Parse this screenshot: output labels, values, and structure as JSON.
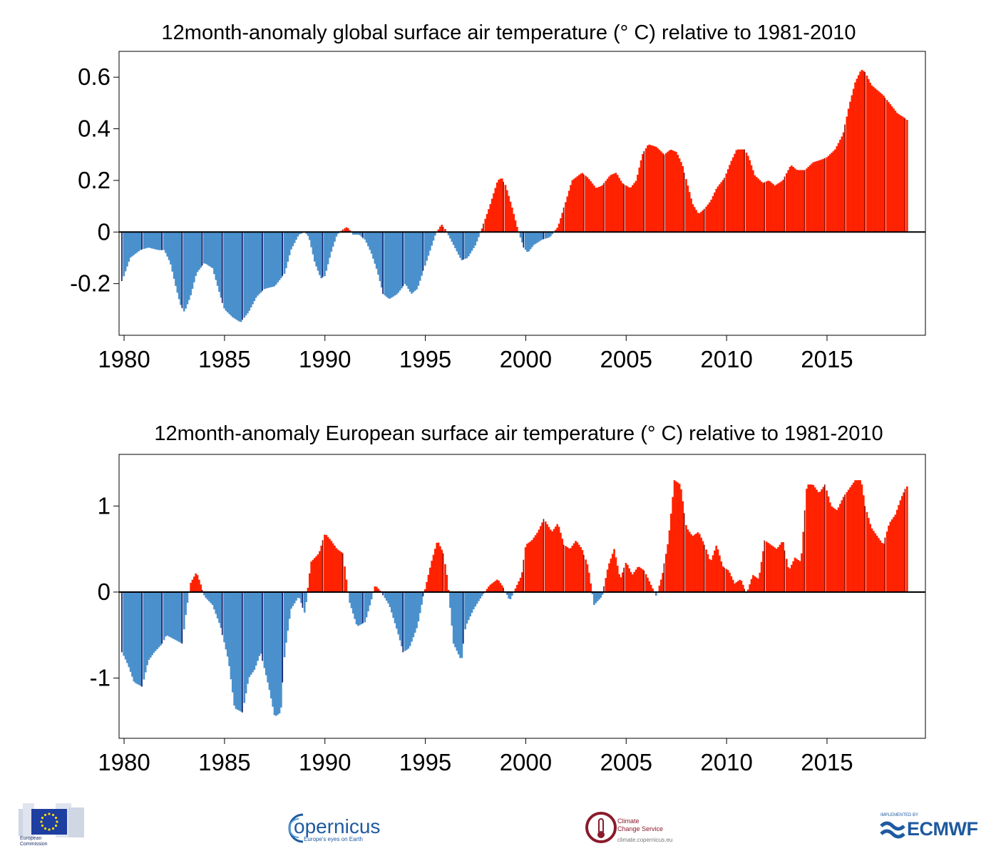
{
  "colors": {
    "positive": "#ff2200",
    "positive_dec": "#8b1208",
    "negative": "#4a90cc",
    "negative_dec": "#0f1f6b",
    "axis": "#000000",
    "eu_blue": "#1e3ea0",
    "copernicus_blue": "#1f5aa0",
    "c3s_red": "#8a1a2b",
    "ecmwf_blue": "#1e5aa0"
  },
  "chart_data": [
    {
      "type": "bar",
      "title": "12month-anomaly global surface air temperature (° C) relative to 1981-2010",
      "xlabel": "",
      "ylabel": "",
      "xlim": [
        1979.75,
        2019.9
      ],
      "ylim": [
        -0.4,
        0.7
      ],
      "xticks": [
        1980,
        1985,
        1990,
        1995,
        2000,
        2005,
        2010,
        2015
      ],
      "yticks": [
        -0.2,
        0,
        0.2,
        0.4,
        0.6
      ],
      "ytick_labels": [
        "-0.2",
        "0",
        "0.2",
        "0.4",
        "0.6"
      ],
      "grid": false,
      "frequency": "monthly 12-month running mean, Dec 1979 - Jan 2019",
      "keypoints": [
        [
          1979.9,
          -0.19
        ],
        [
          1980.3,
          -0.1
        ],
        [
          1980.8,
          -0.07
        ],
        [
          1981.2,
          -0.06
        ],
        [
          1981.7,
          -0.07
        ],
        [
          1982.0,
          -0.07
        ],
        [
          1982.3,
          -0.12
        ],
        [
          1982.6,
          -0.22
        ],
        [
          1982.8,
          -0.28
        ],
        [
          1983.0,
          -0.31
        ],
        [
          1983.3,
          -0.25
        ],
        [
          1983.6,
          -0.16
        ],
        [
          1984.0,
          -0.12
        ],
        [
          1984.4,
          -0.14
        ],
        [
          1984.8,
          -0.25
        ],
        [
          1985.0,
          -0.3
        ],
        [
          1985.4,
          -0.33
        ],
        [
          1985.8,
          -0.35
        ],
        [
          1986.2,
          -0.31
        ],
        [
          1986.6,
          -0.25
        ],
        [
          1987.0,
          -0.22
        ],
        [
          1987.5,
          -0.21
        ],
        [
          1988.0,
          -0.16
        ],
        [
          1988.3,
          -0.07
        ],
        [
          1988.7,
          -0.01
        ],
        [
          1989.0,
          0.0
        ],
        [
          1989.2,
          -0.02
        ],
        [
          1989.5,
          -0.12
        ],
        [
          1989.8,
          -0.18
        ],
        [
          1990.0,
          -0.17
        ],
        [
          1990.3,
          -0.08
        ],
        [
          1990.6,
          -0.01
        ],
        [
          1990.9,
          0.01
        ],
        [
          1991.1,
          0.02
        ],
        [
          1991.4,
          -0.01
        ],
        [
          1991.7,
          -0.01
        ],
        [
          1992.0,
          -0.03
        ],
        [
          1992.3,
          -0.08
        ],
        [
          1992.6,
          -0.15
        ],
        [
          1992.9,
          -0.24
        ],
        [
          1993.2,
          -0.26
        ],
        [
          1993.6,
          -0.24
        ],
        [
          1994.0,
          -0.2
        ],
        [
          1994.3,
          -0.24
        ],
        [
          1994.6,
          -0.22
        ],
        [
          1994.9,
          -0.15
        ],
        [
          1995.2,
          -0.08
        ],
        [
          1995.5,
          -0.01
        ],
        [
          1995.8,
          0.03
        ],
        [
          1996.0,
          0.01
        ],
        [
          1996.4,
          -0.05
        ],
        [
          1996.8,
          -0.11
        ],
        [
          1997.1,
          -0.1
        ],
        [
          1997.5,
          -0.05
        ],
        [
          1997.8,
          0.01
        ],
        [
          1998.2,
          0.1
        ],
        [
          1998.6,
          0.2
        ],
        [
          1998.8,
          0.21
        ],
        [
          1999.0,
          0.18
        ],
        [
          1999.3,
          0.1
        ],
        [
          1999.6,
          0.01
        ],
        [
          1999.9,
          -0.06
        ],
        [
          2000.1,
          -0.08
        ],
        [
          2000.4,
          -0.05
        ],
        [
          2000.8,
          -0.03
        ],
        [
          2001.2,
          -0.02
        ],
        [
          2001.6,
          0.02
        ],
        [
          2002.0,
          0.12
        ],
        [
          2002.3,
          0.2
        ],
        [
          2002.8,
          0.23
        ],
        [
          2003.1,
          0.21
        ],
        [
          2003.5,
          0.17
        ],
        [
          2003.8,
          0.18
        ],
        [
          2004.2,
          0.22
        ],
        [
          2004.5,
          0.23
        ],
        [
          2004.8,
          0.19
        ],
        [
          2005.2,
          0.17
        ],
        [
          2005.5,
          0.2
        ],
        [
          2005.8,
          0.3
        ],
        [
          2006.1,
          0.34
        ],
        [
          2006.5,
          0.33
        ],
        [
          2006.9,
          0.3
        ],
        [
          2007.2,
          0.32
        ],
        [
          2007.5,
          0.31
        ],
        [
          2007.8,
          0.26
        ],
        [
          2008.0,
          0.2
        ],
        [
          2008.3,
          0.11
        ],
        [
          2008.6,
          0.07
        ],
        [
          2008.9,
          0.09
        ],
        [
          2009.2,
          0.12
        ],
        [
          2009.5,
          0.17
        ],
        [
          2009.9,
          0.21
        ],
        [
          2010.2,
          0.27
        ],
        [
          2010.5,
          0.32
        ],
        [
          2010.9,
          0.32
        ],
        [
          2011.1,
          0.29
        ],
        [
          2011.4,
          0.22
        ],
        [
          2011.8,
          0.19
        ],
        [
          2012.1,
          0.2
        ],
        [
          2012.4,
          0.18
        ],
        [
          2012.8,
          0.2
        ],
        [
          2013.2,
          0.26
        ],
        [
          2013.5,
          0.24
        ],
        [
          2013.9,
          0.24
        ],
        [
          2014.3,
          0.27
        ],
        [
          2014.7,
          0.28
        ],
        [
          2015.0,
          0.29
        ],
        [
          2015.4,
          0.32
        ],
        [
          2015.8,
          0.38
        ],
        [
          2016.1,
          0.49
        ],
        [
          2016.4,
          0.58
        ],
        [
          2016.7,
          0.63
        ],
        [
          2016.9,
          0.62
        ],
        [
          2017.2,
          0.57
        ],
        [
          2017.5,
          0.55
        ],
        [
          2017.8,
          0.53
        ],
        [
          2018.1,
          0.5
        ],
        [
          2018.5,
          0.46
        ],
        [
          2018.9,
          0.44
        ],
        [
          2019.05,
          0.43
        ]
      ]
    },
    {
      "type": "bar",
      "title": "12month-anomaly European surface air temperature (° C) relative to 1981-2010",
      "xlabel": "",
      "ylabel": "",
      "xlim": [
        1979.75,
        2019.9
      ],
      "ylim": [
        -1.7,
        1.6
      ],
      "xticks": [
        1980,
        1985,
        1990,
        1995,
        2000,
        2005,
        2010,
        2015
      ],
      "yticks": [
        -1,
        0,
        1
      ],
      "ytick_labels": [
        "-1",
        "0",
        "1"
      ],
      "grid": false,
      "frequency": "monthly 12-month running mean, Dec 1979 - Jan 2019",
      "keypoints": [
        [
          1979.9,
          -0.7
        ],
        [
          1980.2,
          -0.85
        ],
        [
          1980.5,
          -1.05
        ],
        [
          1980.9,
          -1.1
        ],
        [
          1981.2,
          -0.8
        ],
        [
          1981.5,
          -0.7
        ],
        [
          1981.9,
          -0.6
        ],
        [
          1982.1,
          -0.5
        ],
        [
          1982.5,
          -0.55
        ],
        [
          1982.9,
          -0.6
        ],
        [
          1983.1,
          -0.2
        ],
        [
          1983.3,
          0.1
        ],
        [
          1983.6,
          0.23
        ],
        [
          1983.8,
          0.1
        ],
        [
          1984.0,
          -0.05
        ],
        [
          1984.4,
          -0.15
        ],
        [
          1984.8,
          -0.4
        ],
        [
          1985.2,
          -0.8
        ],
        [
          1985.5,
          -1.35
        ],
        [
          1985.9,
          -1.4
        ],
        [
          1986.2,
          -1.0
        ],
        [
          1986.5,
          -0.9
        ],
        [
          1986.8,
          -0.7
        ],
        [
          1987.2,
          -1.1
        ],
        [
          1987.5,
          -1.45
        ],
        [
          1987.8,
          -1.4
        ],
        [
          1988.0,
          -0.7
        ],
        [
          1988.3,
          -0.2
        ],
        [
          1988.7,
          -0.05
        ],
        [
          1989.0,
          -0.25
        ],
        [
          1989.3,
          0.35
        ],
        [
          1989.7,
          0.45
        ],
        [
          1990.0,
          0.68
        ],
        [
          1990.3,
          0.6
        ],
        [
          1990.6,
          0.5
        ],
        [
          1990.9,
          0.45
        ],
        [
          1991.2,
          -0.1
        ],
        [
          1991.6,
          -0.4
        ],
        [
          1992.0,
          -0.35
        ],
        [
          1992.3,
          -0.1
        ],
        [
          1992.5,
          0.08
        ],
        [
          1992.8,
          0.0
        ],
        [
          1993.2,
          -0.15
        ],
        [
          1993.6,
          -0.45
        ],
        [
          1993.9,
          -0.7
        ],
        [
          1994.2,
          -0.65
        ],
        [
          1994.6,
          -0.4
        ],
        [
          1994.9,
          -0.05
        ],
        [
          1995.3,
          0.35
        ],
        [
          1995.6,
          0.6
        ],
        [
          1995.9,
          0.45
        ],
        [
          1996.1,
          0.15
        ],
        [
          1996.4,
          -0.6
        ],
        [
          1996.8,
          -0.8
        ],
        [
          1997.0,
          -0.4
        ],
        [
          1997.4,
          -0.2
        ],
        [
          1997.8,
          -0.05
        ],
        [
          1998.2,
          0.08
        ],
        [
          1998.6,
          0.15
        ],
        [
          1998.9,
          0.05
        ],
        [
          1999.2,
          -0.1
        ],
        [
          1999.5,
          0.05
        ],
        [
          1999.8,
          0.2
        ],
        [
          2000.0,
          0.55
        ],
        [
          2000.3,
          0.6
        ],
        [
          2000.6,
          0.7
        ],
        [
          2000.9,
          0.85
        ],
        [
          2001.3,
          0.7
        ],
        [
          2001.6,
          0.8
        ],
        [
          2001.9,
          0.55
        ],
        [
          2002.2,
          0.5
        ],
        [
          2002.5,
          0.6
        ],
        [
          2002.8,
          0.5
        ],
        [
          2003.1,
          0.3
        ],
        [
          2003.4,
          -0.15
        ],
        [
          2003.8,
          -0.05
        ],
        [
          2004.1,
          0.3
        ],
        [
          2004.4,
          0.5
        ],
        [
          2004.7,
          0.15
        ],
        [
          2005.0,
          0.35
        ],
        [
          2005.3,
          0.2
        ],
        [
          2005.6,
          0.3
        ],
        [
          2005.9,
          0.25
        ],
        [
          2006.2,
          0.1
        ],
        [
          2006.5,
          -0.05
        ],
        [
          2006.8,
          0.2
        ],
        [
          2007.1,
          0.6
        ],
        [
          2007.4,
          1.3
        ],
        [
          2007.7,
          1.25
        ],
        [
          2008.0,
          0.75
        ],
        [
          2008.3,
          0.65
        ],
        [
          2008.6,
          0.7
        ],
        [
          2008.9,
          0.55
        ],
        [
          2009.2,
          0.35
        ],
        [
          2009.5,
          0.55
        ],
        [
          2009.8,
          0.3
        ],
        [
          2010.1,
          0.25
        ],
        [
          2010.4,
          0.1
        ],
        [
          2010.7,
          0.15
        ],
        [
          2011.0,
          -0.02
        ],
        [
          2011.3,
          0.2
        ],
        [
          2011.6,
          0.15
        ],
        [
          2011.9,
          0.6
        ],
        [
          2012.2,
          0.55
        ],
        [
          2012.5,
          0.5
        ],
        [
          2012.8,
          0.6
        ],
        [
          2013.1,
          0.25
        ],
        [
          2013.4,
          0.4
        ],
        [
          2013.7,
          0.35
        ],
        [
          2014.0,
          1.25
        ],
        [
          2014.3,
          1.25
        ],
        [
          2014.6,
          1.15
        ],
        [
          2014.9,
          1.25
        ],
        [
          2015.2,
          1.0
        ],
        [
          2015.5,
          0.95
        ],
        [
          2015.8,
          1.1
        ],
        [
          2016.1,
          1.2
        ],
        [
          2016.4,
          1.3
        ],
        [
          2016.7,
          1.3
        ],
        [
          2016.9,
          1.0
        ],
        [
          2017.2,
          0.75
        ],
        [
          2017.5,
          0.65
        ],
        [
          2017.8,
          0.55
        ],
        [
          2018.1,
          0.8
        ],
        [
          2018.4,
          0.9
        ],
        [
          2018.7,
          1.1
        ],
        [
          2018.9,
          1.2
        ],
        [
          2019.05,
          1.25
        ]
      ]
    }
  ],
  "logos": {
    "ec_text_1": "European",
    "ec_text_2": "Commission",
    "copernicus_word": "opernicus",
    "copernicus_sub": "Europe's eyes on Earth",
    "c3s_name_1": "Climate",
    "c3s_name_2": "Change Service",
    "c3s_url": "climate.copernicus.eu",
    "ecmwf_small": "IMPLEMENTED BY",
    "ecmwf_word": "ECMWF"
  }
}
